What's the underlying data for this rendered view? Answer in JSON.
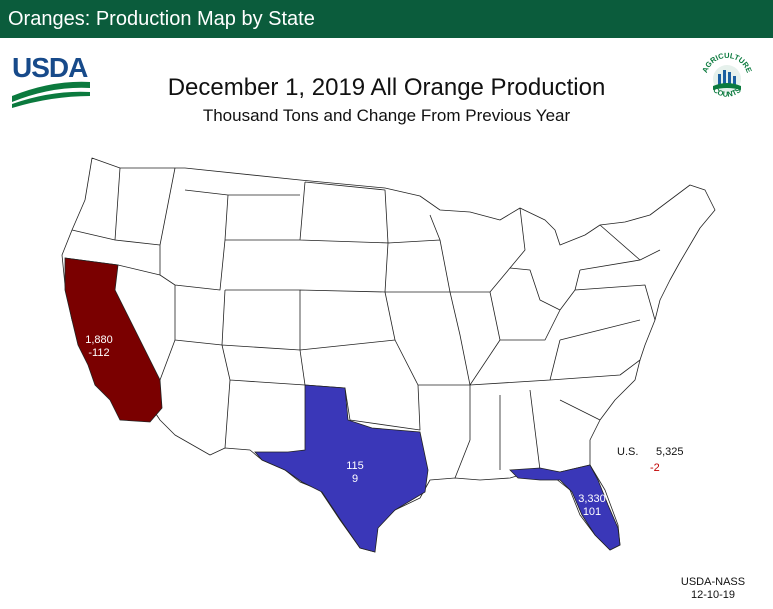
{
  "header": {
    "title": "Oranges: Production Map by State"
  },
  "logo": {
    "text": "USDA"
  },
  "seal": {
    "top_text": "AGRICULTURE",
    "bottom_text": "COUNTS"
  },
  "map": {
    "title": "December 1, 2019 All Orange Production",
    "subtitle": "Thousand Tons and Change From Previous Year",
    "colors": {
      "increase": "#3a37b8",
      "decrease": "#7a0000",
      "no_data": "#ffffff",
      "border": "#222222"
    },
    "states": [
      {
        "name": "California",
        "value": "1,880",
        "change": "-112",
        "status": "decrease"
      },
      {
        "name": "Texas",
        "value": "115",
        "change": "9",
        "status": "increase"
      },
      {
        "name": "Florida",
        "value": "3,330",
        "change": "101",
        "status": "increase"
      }
    ],
    "us_total": {
      "label": "U.S.",
      "value": "5,325",
      "change": "-2"
    }
  },
  "footer": {
    "source": "USDA-NASS",
    "date": "12-10-19"
  }
}
